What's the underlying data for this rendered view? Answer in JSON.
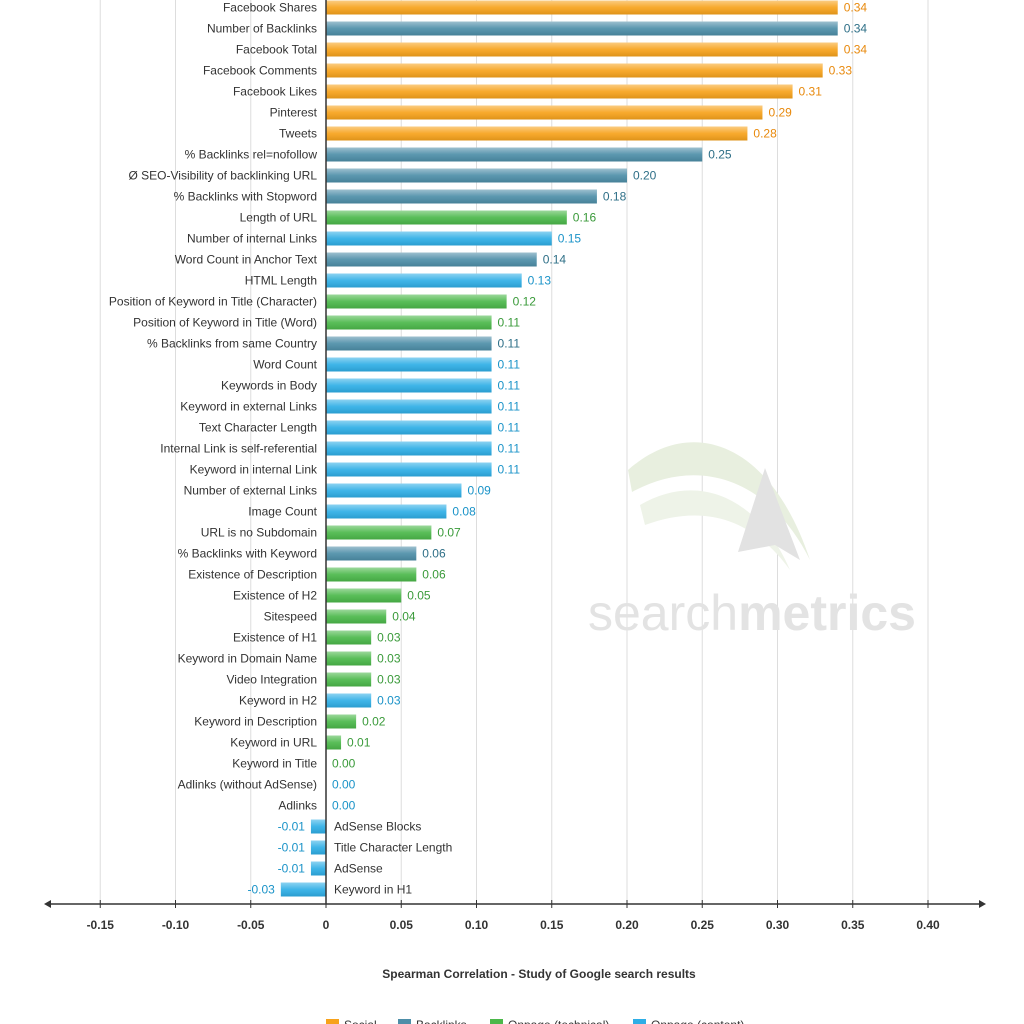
{
  "chart_data": {
    "type": "bar",
    "orientation": "horizontal",
    "categories": [
      "Facebook Shares",
      "Number of Backlinks",
      "Facebook Total",
      "Facebook Comments",
      "Facebook Likes",
      "Pinterest",
      "Tweets",
      "% Backlinks rel=nofollow",
      "Ø SEO-Visibility of backlinking URL",
      "% Backlinks with Stopword",
      "Length of URL",
      "Number of internal Links",
      "Word Count in Anchor Text",
      "HTML Length",
      "Position of Keyword in Title (Character)",
      "Position of Keyword in Title (Word)",
      "% Backlinks from same Country",
      "Word Count",
      "Keywords in Body",
      "Keyword in external Links",
      "Text Character Length",
      "Internal Link is self-referential",
      "Keyword in internal Link",
      "Number of external Links",
      "Image Count",
      "URL is no Subdomain",
      "% Backlinks with Keyword",
      "Existence of Description",
      "Existence of H2",
      "Sitespeed",
      "Existence of H1",
      "Keyword in Domain Name",
      "Video Integration",
      "Keyword in H2",
      "Keyword in Description",
      "Keyword in URL",
      "Keyword in Title",
      "Adlinks (without AdSense)",
      "Adlinks",
      "AdSense Blocks",
      "Title Character Length",
      "AdSense",
      "Keyword in H1"
    ],
    "values": [
      0.34,
      0.34,
      0.34,
      0.33,
      0.31,
      0.29,
      0.28,
      0.25,
      0.2,
      0.18,
      0.16,
      0.15,
      0.14,
      0.13,
      0.12,
      0.11,
      0.11,
      0.11,
      0.11,
      0.11,
      0.11,
      0.11,
      0.11,
      0.09,
      0.08,
      0.07,
      0.06,
      0.06,
      0.05,
      0.04,
      0.03,
      0.03,
      0.03,
      0.03,
      0.02,
      0.01,
      0.0,
      0.0,
      0.0,
      -0.01,
      -0.01,
      -0.01,
      -0.03
    ],
    "value_labels": [
      "0.34",
      "0.34",
      "0.34",
      "0.33",
      "0.31",
      "0.29",
      "0.28",
      "0.25",
      "0.20",
      "0.18",
      "0.16",
      "0.15",
      "0.14",
      "0.13",
      "0.12",
      "0.11",
      "0.11",
      "0.11",
      "0.11",
      "0.11",
      "0.11",
      "0.11",
      "0.11",
      "0.09",
      "0.08",
      "0.07",
      "0.06",
      "0.06",
      "0.05",
      "0.04",
      "0.03",
      "0.03",
      "0.03",
      "0.03",
      "0.02",
      "0.01",
      "0.00",
      "0.00",
      "0.00",
      "-0.01",
      "-0.01",
      "-0.01",
      "-0.03"
    ],
    "groups": [
      "social",
      "backlinks",
      "social",
      "social",
      "social",
      "social",
      "social",
      "backlinks",
      "backlinks",
      "backlinks",
      "technical",
      "content",
      "backlinks",
      "content",
      "technical",
      "technical",
      "backlinks",
      "content",
      "content",
      "content",
      "content",
      "content",
      "content",
      "content",
      "content",
      "technical",
      "backlinks",
      "technical",
      "technical",
      "technical",
      "technical",
      "technical",
      "technical",
      "content",
      "technical",
      "technical",
      "technical",
      "content",
      "content",
      "content",
      "content",
      "content",
      "content"
    ],
    "series": [
      {
        "key": "social",
        "name": "Social",
        "color": "#f7a21b",
        "label_color": "#e8890c"
      },
      {
        "key": "backlinks",
        "name": "Backlinks",
        "color": "#4d8ea8",
        "label_color": "#2e6f87"
      },
      {
        "key": "technical",
        "name": "Onpage (technical)",
        "color": "#4bb84a",
        "label_color": "#3a9a3a"
      },
      {
        "key": "content",
        "name": "Onpage (content)",
        "color": "#2eaee6",
        "label_color": "#1a93c8"
      }
    ],
    "xlim": [
      -0.18,
      0.44
    ],
    "x_ticks": [
      "-0.15",
      "-0.10",
      "-0.05",
      "0",
      "0.05",
      "0.10",
      "0.15",
      "0.20",
      "0.25",
      "0.30",
      "0.35",
      "0.40"
    ],
    "xlabel": "Spearman Correlation - Study of Google search results",
    "grid": true,
    "legend_position": "bottom"
  },
  "watermark": {
    "light": "search",
    "bold": "metrics"
  }
}
